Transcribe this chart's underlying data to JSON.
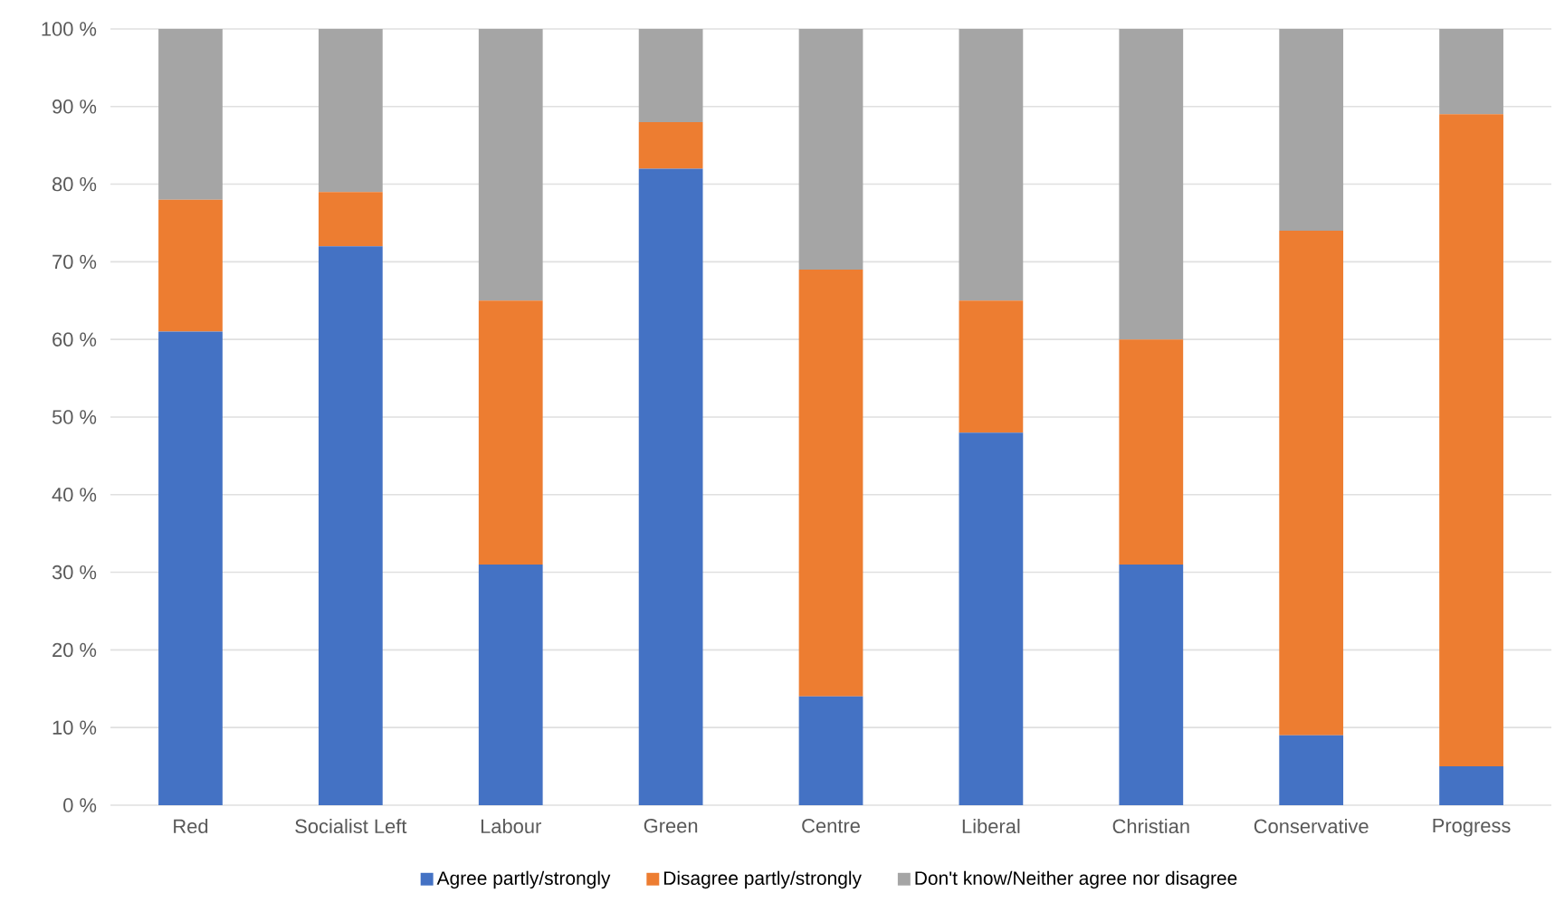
{
  "chart_data": {
    "type": "bar",
    "stacked": true,
    "categories": [
      "Red",
      "Socialist Left",
      "Labour",
      "Green",
      "Centre",
      "Liberal",
      "Christian",
      "Conservative",
      "Progress"
    ],
    "series": [
      {
        "name": "Agree partly/strongly",
        "color": "#4472c4",
        "values": [
          61,
          72,
          31,
          82,
          14,
          48,
          31,
          9,
          5
        ]
      },
      {
        "name": "Disagree partly/strongly",
        "color": "#ed7d31",
        "values": [
          17,
          7,
          34,
          6,
          55,
          17,
          29,
          65,
          84
        ]
      },
      {
        "name": "Don't know/Neither agree nor disagree",
        "color": "#a5a5a5",
        "values": [
          22,
          21,
          35,
          12,
          31,
          35,
          40,
          26,
          11
        ]
      }
    ],
    "ylim": [
      0,
      100
    ],
    "yticks": [
      {
        "value": 0,
        "label": "0 %"
      },
      {
        "value": 10,
        "label": "10 %"
      },
      {
        "value": 20,
        "label": "20 %"
      },
      {
        "value": 30,
        "label": "30 %"
      },
      {
        "value": 40,
        "label": "40 %"
      },
      {
        "value": 50,
        "label": "50 %"
      },
      {
        "value": 60,
        "label": "60 %"
      },
      {
        "value": 70,
        "label": "70 %"
      },
      {
        "value": 80,
        "label": "80 %"
      },
      {
        "value": 90,
        "label": "90 %"
      },
      {
        "value": 100,
        "label": "100 %"
      }
    ],
    "grid": "y",
    "legend": "bottom"
  }
}
